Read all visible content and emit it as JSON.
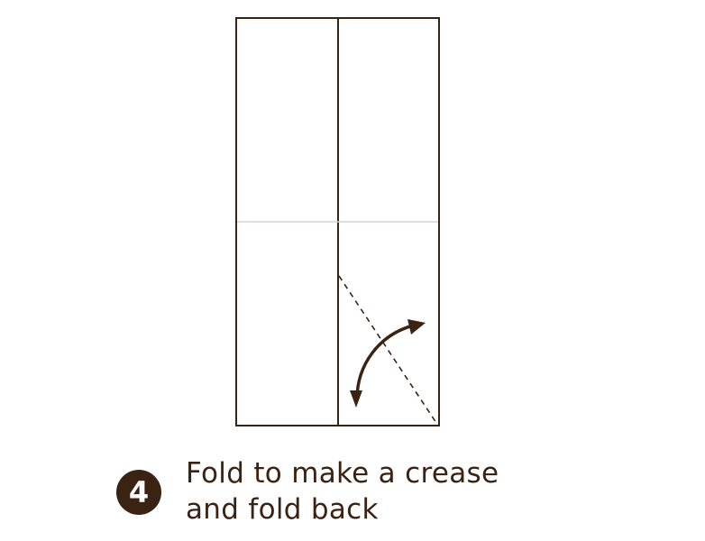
{
  "step": {
    "number": "4",
    "instruction_lines": [
      "Fold to make a crease",
      "and fold back"
    ]
  },
  "colors": {
    "ink": "#3b2314",
    "crease": "#c9dcc6",
    "background": "#ffffff"
  },
  "icons": {
    "fold_arrow": "curved-double-arrow-icon",
    "step_marker": "numbered-circle-icon"
  }
}
